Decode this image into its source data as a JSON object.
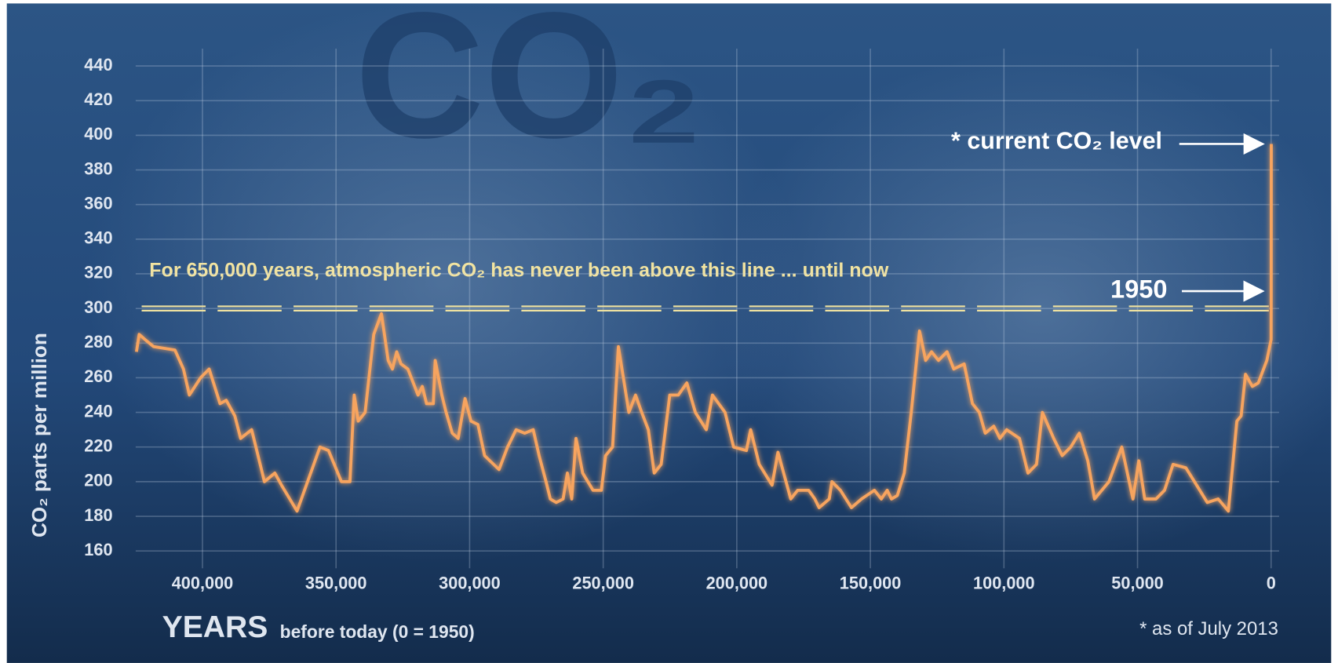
{
  "chart_data": {
    "type": "line",
    "watermark": "CO₂",
    "y_label": "CO₂ parts per million",
    "x_label": "YEARS",
    "x_label_sub": "before today (0 = 1950)",
    "annotation": "For 650,000 years, atmospheric CO₂ has never been above this line ... until now",
    "current_label": "* current CO₂ level",
    "year_label": "1950",
    "footnote": "* as of July 2013",
    "threshold": 300,
    "color": "#f7a45e",
    "threshold_color": "#f1e3a0",
    "grid": true,
    "xlim": [
      425000,
      -3000
    ],
    "ylim": [
      150,
      450
    ],
    "yticks": [
      160,
      180,
      200,
      220,
      240,
      260,
      280,
      300,
      320,
      340,
      360,
      380,
      400,
      420,
      440
    ],
    "xticks": [
      {
        "value": 400000,
        "label": "400,000"
      },
      {
        "value": 350000,
        "label": "350,000"
      },
      {
        "value": 300000,
        "label": "300,000"
      },
      {
        "value": 250000,
        "label": "250,000"
      },
      {
        "value": 200000,
        "label": "200,000"
      },
      {
        "value": 150000,
        "label": "150,000"
      },
      {
        "value": 100000,
        "label": "100,000"
      },
      {
        "value": 50000,
        "label": "50,000"
      },
      0
    ],
    "x": [
      424700,
      423700,
      421500,
      418300,
      410300,
      407100,
      404900,
      400700,
      397500,
      393400,
      391100,
      387900,
      385700,
      381600,
      376800,
      372900,
      370400,
      364600,
      356000,
      352800,
      348000,
      344800,
      343200,
      341700,
      339100,
      335900,
      333000,
      330500,
      328900,
      327300,
      325700,
      323100,
      319300,
      317700,
      316100,
      313600,
      312900,
      310400,
      308800,
      306500,
      304300,
      301700,
      299500,
      296900,
      294400,
      289000,
      285800,
      282600,
      279400,
      276200,
      274000,
      271400,
      269800,
      267600,
      265000,
      263400,
      261800,
      260200,
      257700,
      253800,
      250700,
      249100,
      246500,
      244300,
      240400,
      237900,
      235600,
      233100,
      230900,
      228300,
      225100,
      221900,
      218700,
      215500,
      211400,
      209100,
      204400,
      201200,
      196400,
      194800,
      191600,
      186800,
      184600,
      179800,
      177200,
      173100,
      170800,
      169200,
      165400,
      164400,
      161200,
      157100,
      153300,
      148500,
      145900,
      143700,
      142100,
      139900,
      137300,
      134700,
      131600,
      129300,
      127100,
      124500,
      121300,
      118800,
      114900,
      111800,
      109200,
      107000,
      103800,
      101500,
      99000,
      94200,
      91000,
      87800,
      85600,
      81400,
      78200,
      75000,
      71800,
      68600,
      66100,
      60700,
      55900,
      51700,
      49500,
      47300,
      43100,
      39900,
      36700,
      31900,
      28700,
      23900,
      19800,
      17600,
      16000,
      12800,
      11200,
      9600,
      7000,
      4800,
      1600,
      0,
      -20,
      -63
    ],
    "values": [
      275,
      285,
      282,
      278,
      276,
      265,
      250,
      260,
      265,
      245,
      247,
      238,
      225,
      230,
      200,
      205,
      198,
      183,
      220,
      218,
      200,
      200,
      250,
      235,
      240,
      285,
      297,
      270,
      265,
      275,
      268,
      265,
      250,
      255,
      245,
      245,
      270,
      250,
      240,
      228,
      225,
      248,
      235,
      233,
      215,
      207,
      220,
      230,
      228,
      230,
      215,
      200,
      190,
      188,
      190,
      205,
      190,
      225,
      205,
      195,
      195,
      215,
      220,
      278,
      240,
      250,
      240,
      230,
      205,
      210,
      250,
      250,
      257,
      240,
      230,
      250,
      240,
      220,
      218,
      230,
      210,
      198,
      217,
      190,
      195,
      195,
      190,
      185,
      190,
      200,
      195,
      185,
      190,
      195,
      190,
      195,
      190,
      192,
      205,
      240,
      287,
      270,
      275,
      270,
      275,
      265,
      268,
      245,
      240,
      228,
      232,
      225,
      230,
      225,
      205,
      210,
      240,
      225,
      215,
      220,
      228,
      212,
      190,
      200,
      220,
      190,
      212,
      190,
      190,
      195,
      210,
      208,
      200,
      188,
      190,
      186,
      183,
      235,
      238,
      262,
      255,
      257,
      270,
      282,
      310,
      395
    ]
  }
}
